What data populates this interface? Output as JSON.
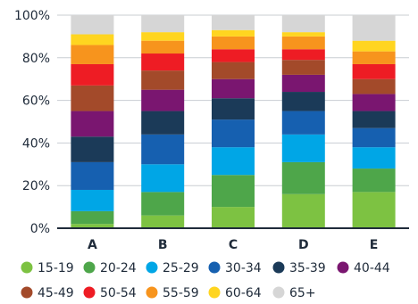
{
  "chart_data": {
    "type": "bar",
    "stacked": true,
    "percent_stacked": true,
    "categories": [
      "A",
      "B",
      "C",
      "D",
      "E"
    ],
    "ylim": [
      0,
      100
    ],
    "yticks": [
      0,
      20,
      40,
      60,
      80,
      100
    ],
    "ytick_labels": [
      "0%",
      "20%",
      "40%",
      "60%",
      "80%",
      "100%"
    ],
    "grid": "horizontal",
    "legend_position": "bottom",
    "series": [
      {
        "name": "15-19",
        "color": "#7dc242",
        "values": [
          2,
          6,
          10,
          16,
          17
        ]
      },
      {
        "name": "20-24",
        "color": "#4ea64a",
        "values": [
          6,
          11,
          15,
          15,
          11
        ]
      },
      {
        "name": "25-29",
        "color": "#00a6e6",
        "values": [
          10,
          13,
          13,
          13,
          10
        ]
      },
      {
        "name": "30-34",
        "color": "#1660b0",
        "values": [
          13,
          14,
          13,
          11,
          9
        ]
      },
      {
        "name": "35-39",
        "color": "#1b3a58",
        "values": [
          12,
          11,
          10,
          9,
          8
        ]
      },
      {
        "name": "40-44",
        "color": "#7a1670",
        "values": [
          12,
          10,
          9,
          8,
          8
        ]
      },
      {
        "name": "45-49",
        "color": "#a34a2a",
        "values": [
          12,
          9,
          8,
          7,
          7
        ]
      },
      {
        "name": "50-54",
        "color": "#ee1c24",
        "values": [
          10,
          8,
          6,
          5,
          7
        ]
      },
      {
        "name": "55-59",
        "color": "#f7941d",
        "values": [
          9,
          6,
          6,
          6,
          6
        ]
      },
      {
        "name": "60-64",
        "color": "#ffd520",
        "values": [
          5,
          4,
          3,
          2,
          5
        ]
      },
      {
        "name": "65+",
        "color": "#d6d6d6",
        "values": [
          9,
          8,
          7,
          8,
          12
        ]
      }
    ]
  }
}
